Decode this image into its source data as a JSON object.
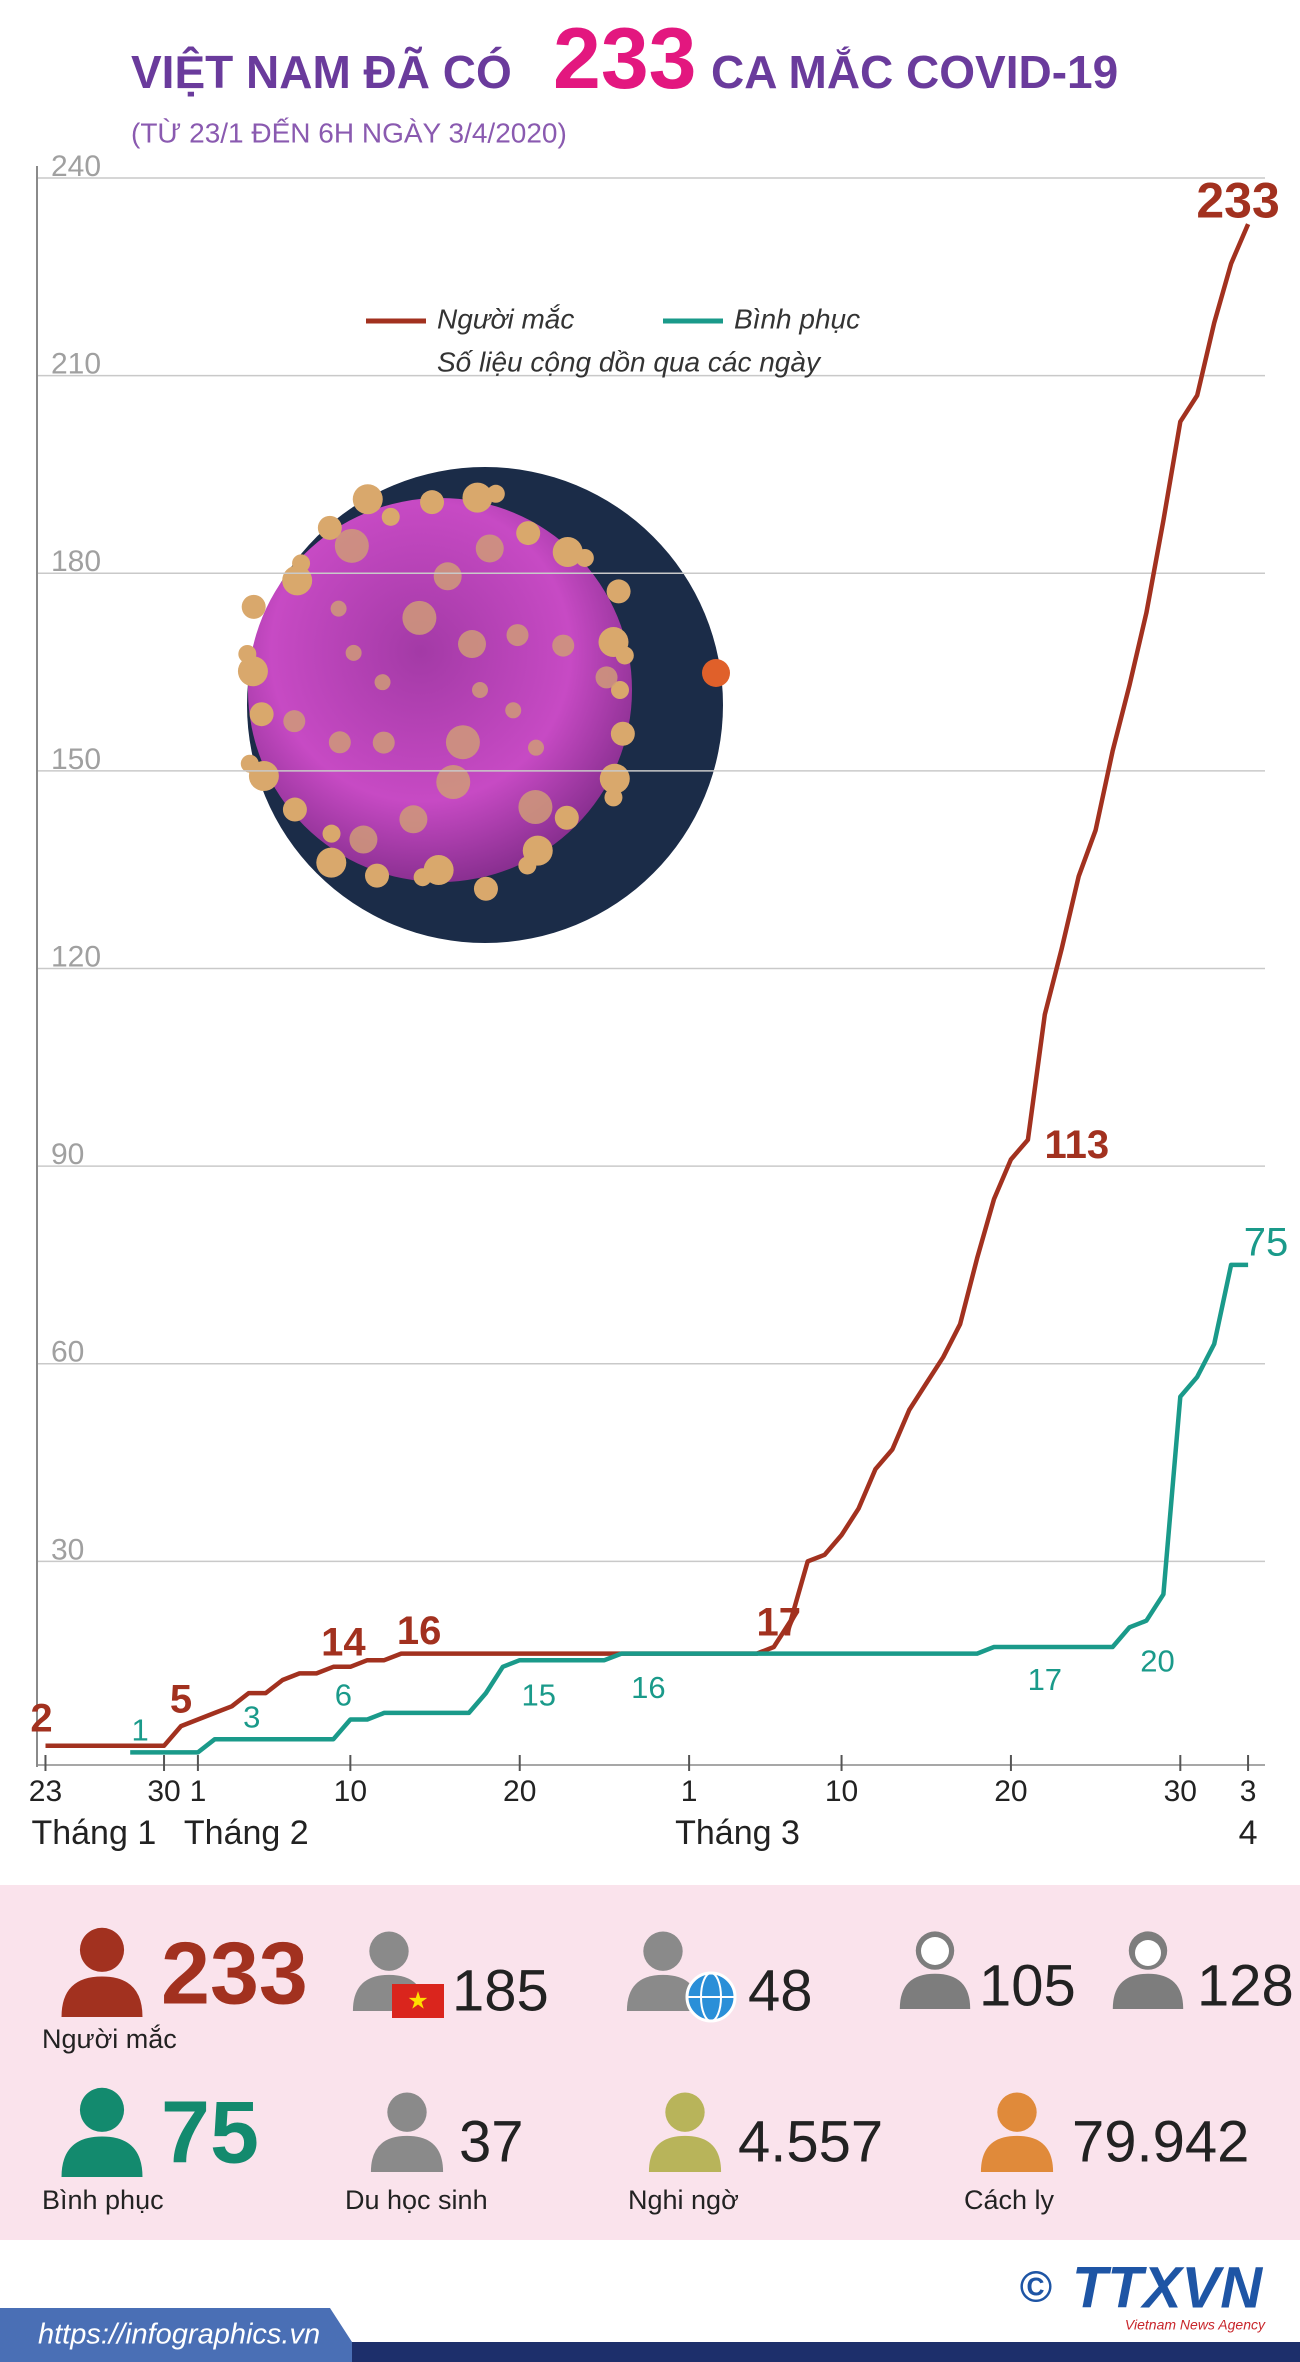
{
  "chart_data": {
    "type": "line",
    "title": [
      "VIỆT NAM ĐÃ CÓ",
      "233",
      "CA MẮC COVID-19"
    ],
    "subtitle": "(TỪ 23/1 ĐẾN 6H NGÀY 3/4/2020)",
    "legend_note": "Số liệu cộng dồn qua các ngày",
    "x": [
      0,
      1,
      2,
      3,
      4,
      5,
      6,
      7,
      8,
      9,
      10,
      11,
      12,
      13,
      14,
      15,
      16,
      17,
      18,
      19,
      20,
      21,
      22,
      23,
      24,
      25,
      26,
      27,
      28,
      29,
      30,
      31,
      32,
      33,
      34,
      35,
      36,
      37,
      38,
      39,
      40,
      41,
      42,
      43,
      44,
      45,
      46,
      47,
      48,
      49,
      50,
      51,
      52,
      53,
      54,
      55,
      56,
      57,
      58,
      59,
      60,
      61,
      62,
      63,
      64,
      65,
      66,
      67,
      68,
      69,
      70,
      71
    ],
    "series": [
      {
        "name": "Người mắc",
        "color": "#a2311f",
        "values": [
          2,
          2,
          2,
          2,
          2,
          2,
          2,
          2,
          5,
          6,
          7,
          8,
          10,
          10,
          12,
          13,
          13,
          14,
          14,
          15,
          15,
          16,
          16,
          16,
          16,
          16,
          16,
          16,
          16,
          16,
          16,
          16,
          16,
          16,
          16,
          16,
          16,
          16,
          16,
          16,
          16,
          16,
          16,
          17,
          21,
          30,
          31,
          34,
          38,
          44,
          47,
          53,
          57,
          61,
          66,
          76,
          85,
          91,
          94,
          113,
          123,
          134,
          141,
          153,
          163,
          174,
          188,
          203,
          207,
          218,
          227,
          233
        ]
      },
      {
        "name": "Bình phục",
        "color": "#1a9a8a",
        "values": [
          null,
          null,
          null,
          null,
          null,
          1,
          1,
          1,
          1,
          1,
          3,
          3,
          3,
          3,
          3,
          3,
          3,
          3,
          6,
          6,
          7,
          7,
          7,
          7,
          7,
          7,
          10,
          14,
          15,
          15,
          15,
          15,
          15,
          15,
          16,
          16,
          16,
          16,
          16,
          16,
          16,
          16,
          16,
          16,
          16,
          16,
          16,
          16,
          16,
          16,
          16,
          16,
          16,
          16,
          16,
          16,
          17,
          17,
          17,
          17,
          17,
          17,
          17,
          17,
          20,
          21,
          25,
          55,
          58,
          63,
          75,
          75
        ]
      }
    ],
    "xlim": [
      -0.5,
      72
    ],
    "xticks": [
      {
        "value": 0,
        "label": "23"
      },
      {
        "value": 7,
        "label": "30"
      },
      {
        "value": 9,
        "label": "1"
      },
      {
        "value": 18,
        "label": "10"
      },
      {
        "value": 28,
        "label": "20"
      },
      {
        "value": 38,
        "label": "1"
      },
      {
        "value": 47,
        "label": "10"
      },
      {
        "value": 57,
        "label": "20"
      },
      {
        "value": 67,
        "label": "30"
      },
      {
        "value": 71,
        "label": "3"
      }
    ],
    "month_ticks": [
      {
        "value": 0,
        "label": "Tháng 1"
      },
      {
        "value": 9,
        "label": "Tháng 2"
      },
      {
        "value": 38,
        "label": "Tháng 3"
      },
      {
        "value": 71,
        "label": "4"
      }
    ],
    "ylim": [
      0,
      240
    ],
    "yticks": [
      30,
      60,
      90,
      120,
      150,
      180,
      210,
      240
    ],
    "grid": true
  },
  "stats": {
    "cases": {
      "value": "233",
      "label": "Người mắc"
    },
    "vietnamese": {
      "value": "185"
    },
    "foreign": {
      "value": "48"
    },
    "male": {
      "value": "105"
    },
    "female": {
      "value": "128"
    },
    "recovered": {
      "value": "75",
      "label": "Bình phục"
    },
    "students": {
      "value": "37",
      "label": "Du học sinh"
    },
    "suspected": {
      "value": "4.557",
      "label": "Nghi ngờ"
    },
    "quarantine": {
      "value": "79.942",
      "label": "Cách ly"
    }
  },
  "footer": {
    "url": "https://infographics.vn",
    "copyright": "©",
    "logo": "TTXVN",
    "agency": "Vietnam News Agency"
  }
}
